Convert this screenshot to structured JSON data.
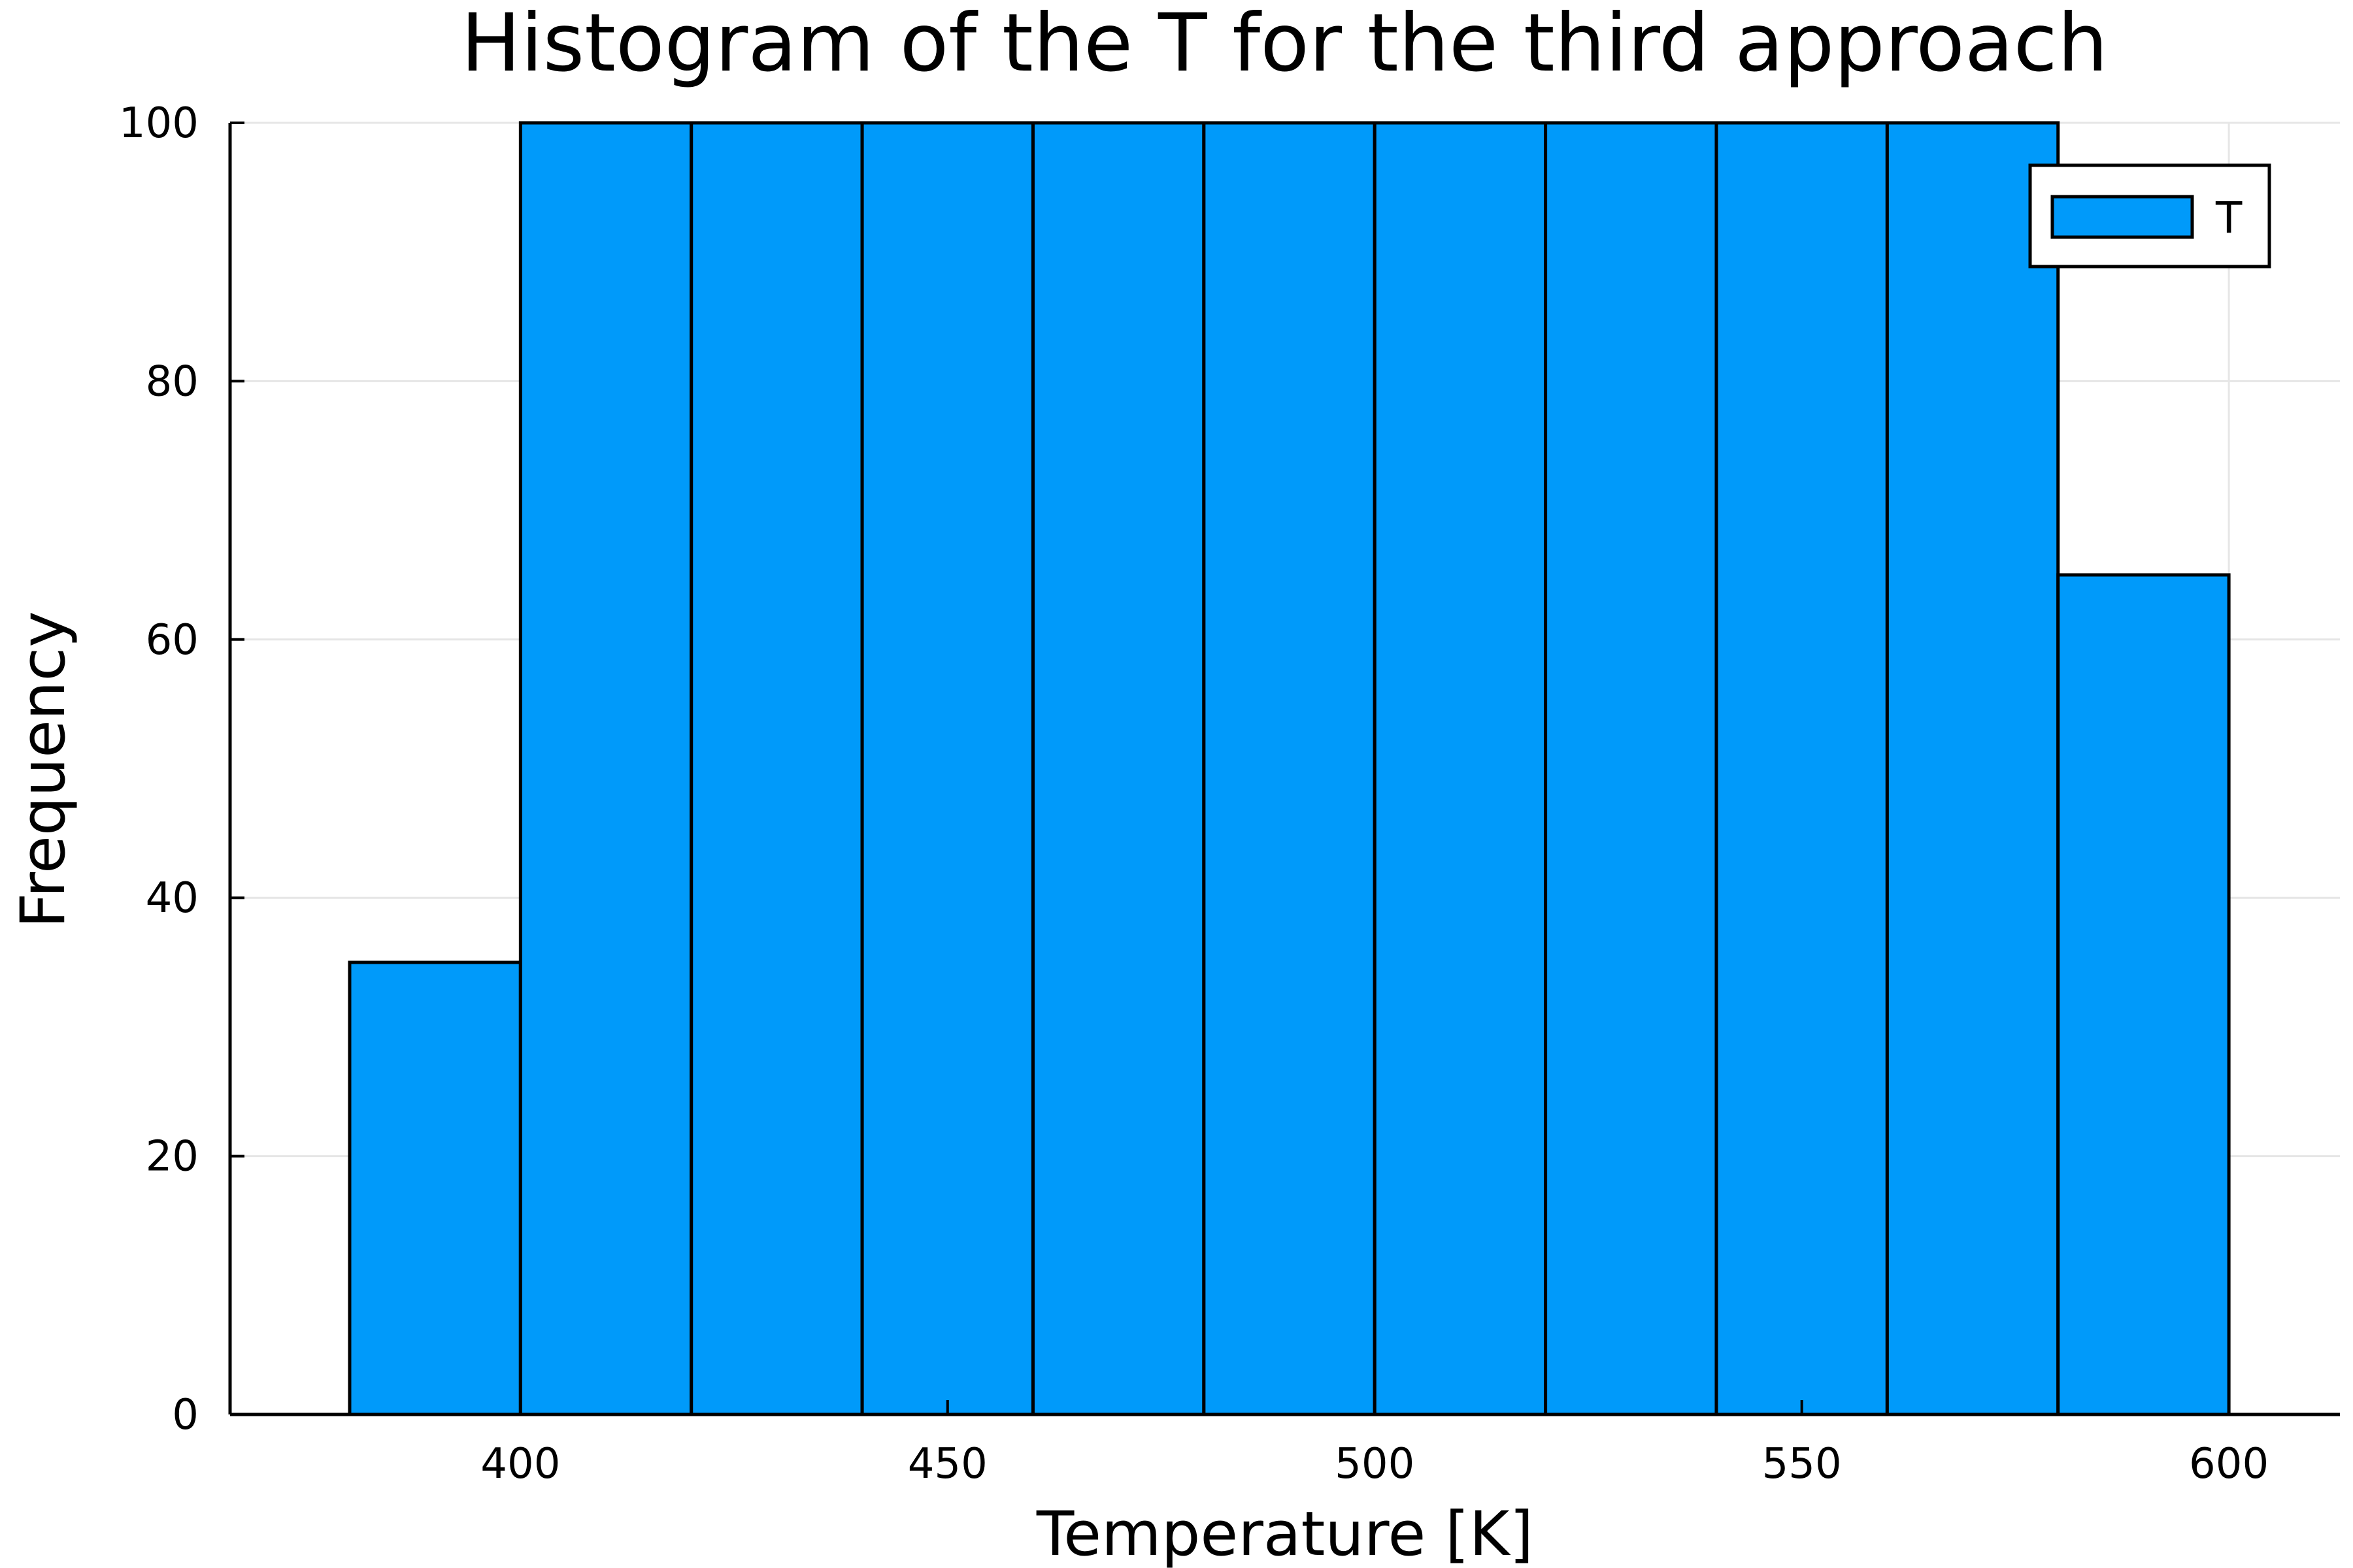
{
  "chart_data": {
    "type": "bar",
    "title": "Histogram of the T for the third approach",
    "xlabel": "Temperature [K]",
    "ylabel": "Frequency",
    "bin_edges": [
      380,
      400,
      420,
      440,
      460,
      480,
      500,
      520,
      540,
      560,
      580,
      600
    ],
    "series": [
      {
        "name": "T",
        "color": "#009AFA",
        "values": [
          35,
          100,
          100,
          100,
          100,
          100,
          100,
          100,
          100,
          100,
          65
        ]
      }
    ],
    "xlim": [
      366,
      613
    ],
    "ylim": [
      0,
      100
    ],
    "xticks": [
      400,
      450,
      500,
      550,
      600
    ],
    "yticks": [
      0,
      20,
      40,
      60,
      80,
      100
    ],
    "grid": true,
    "legend_position": "top-right"
  }
}
